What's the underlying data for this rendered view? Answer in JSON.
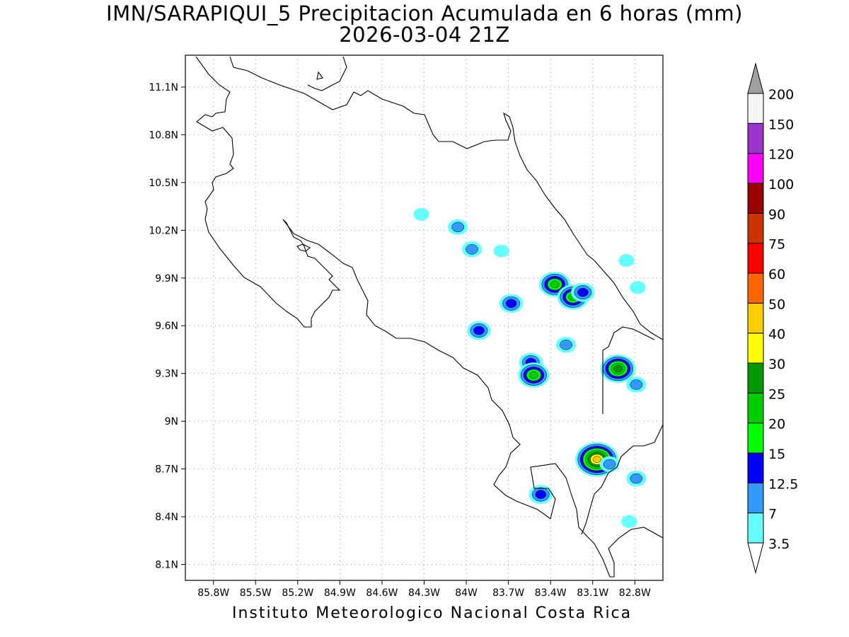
{
  "title": {
    "line1": "IMN/SARAPIQUI_5 Precipitacion Acumulada en 6 horas (mm)",
    "line2": "2026-03-04 21Z"
  },
  "footer": "Instituto Meteorologico Nacional Costa Rica",
  "map": {
    "lon_range": [
      -86.0,
      -82.6
    ],
    "lat_range": [
      8.0,
      11.3
    ],
    "lon_ticks": [
      {
        "value": -85.8,
        "label": "85.8W"
      },
      {
        "value": -85.5,
        "label": "85.5W"
      },
      {
        "value": -85.2,
        "label": "85.2W"
      },
      {
        "value": -84.9,
        "label": "84.9W"
      },
      {
        "value": -84.6,
        "label": "84.6W"
      },
      {
        "value": -84.3,
        "label": "84.3W"
      },
      {
        "value": -84.0,
        "label": "84W"
      },
      {
        "value": -83.7,
        "label": "83.7W"
      },
      {
        "value": -83.4,
        "label": "83.4W"
      },
      {
        "value": -83.1,
        "label": "83.1W"
      },
      {
        "value": -82.8,
        "label": "82.8W"
      }
    ],
    "lat_ticks": [
      {
        "value": 11.1,
        "label": "11.1N"
      },
      {
        "value": 10.8,
        "label": "10.8N"
      },
      {
        "value": 10.5,
        "label": "10.5N"
      },
      {
        "value": 10.2,
        "label": "10.2N"
      },
      {
        "value": 9.9,
        "label": "9.9N"
      },
      {
        "value": 9.6,
        "label": "9.6N"
      },
      {
        "value": 9.3,
        "label": "9.3N"
      },
      {
        "value": 9.0,
        "label": "9N"
      },
      {
        "value": 8.7,
        "label": "8.7N"
      },
      {
        "value": 8.4,
        "label": "8.4N"
      },
      {
        "value": 8.1,
        "label": "8.1N"
      }
    ],
    "grid": true,
    "coastline_color": "#000000",
    "precip_cells": [
      {
        "lon": -84.06,
        "lat": 10.22,
        "max_level": 7
      },
      {
        "lon": -83.96,
        "lat": 10.08,
        "max_level": 7
      },
      {
        "lon": -83.75,
        "lat": 10.07,
        "max_level": 3.5
      },
      {
        "lon": -84.32,
        "lat": 10.3,
        "max_level": 3.5
      },
      {
        "lon": -83.68,
        "lat": 9.74,
        "max_level": 12.5
      },
      {
        "lon": -83.37,
        "lat": 9.86,
        "max_level": 20
      },
      {
        "lon": -83.24,
        "lat": 9.78,
        "max_level": 20
      },
      {
        "lon": -83.17,
        "lat": 9.81,
        "max_level": 12.5
      },
      {
        "lon": -83.91,
        "lat": 9.57,
        "max_level": 12.5
      },
      {
        "lon": -83.54,
        "lat": 9.37,
        "max_level": 12.5
      },
      {
        "lon": -83.52,
        "lat": 9.29,
        "max_level": 20
      },
      {
        "lon": -82.92,
        "lat": 9.33,
        "max_level": 25
      },
      {
        "lon": -83.07,
        "lat": 8.76,
        "max_level": 40
      },
      {
        "lon": -83.47,
        "lat": 8.54,
        "max_level": 12.5
      },
      {
        "lon": -82.79,
        "lat": 9.23,
        "max_level": 7
      },
      {
        "lon": -83.29,
        "lat": 9.48,
        "max_level": 7
      },
      {
        "lon": -82.98,
        "lat": 8.73,
        "max_level": 7
      },
      {
        "lon": -82.79,
        "lat": 8.64,
        "max_level": 7
      },
      {
        "lon": -82.86,
        "lat": 10.01,
        "max_level": 3.5
      },
      {
        "lon": -82.78,
        "lat": 9.84,
        "max_level": 3.5
      },
      {
        "lon": -82.84,
        "lat": 8.37,
        "max_level": 3.5
      }
    ]
  },
  "colorbar": {
    "levels": [
      "3.5",
      "7",
      "12.5",
      "15",
      "20",
      "25",
      "30",
      "40",
      "50",
      "60",
      "75",
      "90",
      "100",
      "120",
      "150",
      "200"
    ],
    "colors": [
      "#66ffff",
      "#3399ff",
      "#0000ff",
      "#00ff00",
      "#00cc00",
      "#009900",
      "#ffff00",
      "#ffcc00",
      "#ff6600",
      "#ff0000",
      "#cc3300",
      "#990000",
      "#ff00ff",
      "#9933cc",
      "#f5f5f5"
    ],
    "over_color": "#a0a0a0",
    "under_color": "#ffffff"
  }
}
